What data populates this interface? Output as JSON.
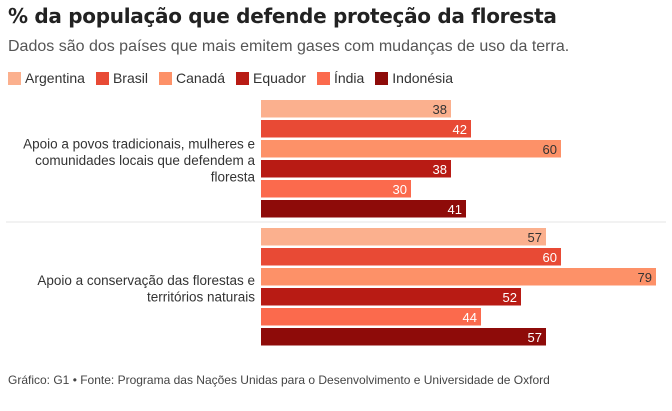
{
  "title": "% da população que defende proteção da floresta",
  "subtitle": "Dados são dos países que mais emitem gases com mudanças de uso da terra.",
  "footer": "Gráfico: G1 • Fonte: Programa das Nações Unidas para o Desenvolvimento e Universidade de Oxford",
  "colors": {
    "Argentina": "#fbb08e",
    "Brasil": "#e84a35",
    "Canadá": "#fd9168",
    "Equador": "#b81b14",
    "Índia": "#fb6a4d",
    "Indonésia": "#8e0b09"
  },
  "chart_data": {
    "type": "bar",
    "orientation": "horizontal",
    "categories": [
      "Apoio a povos tradicionais, mulheres e comunidades locais que defendem a floresta",
      "Apoio a conservação das florestas e territórios naturais"
    ],
    "category_lines": [
      [
        "Apoio a povos tradicionais, mulheres e",
        "comunidades locais que defendem a",
        "floresta"
      ],
      [
        "Apoio a conservação das florestas e",
        "territórios naturais"
      ]
    ],
    "series": [
      {
        "name": "Argentina",
        "values": [
          38,
          57
        ]
      },
      {
        "name": "Brasil",
        "values": [
          42,
          60
        ]
      },
      {
        "name": "Canadá",
        "values": [
          60,
          79
        ]
      },
      {
        "name": "Equador",
        "values": [
          38,
          52
        ]
      },
      {
        "name": "Índia",
        "values": [
          30,
          44
        ]
      },
      {
        "name": "Indonésia",
        "values": [
          41,
          57
        ]
      }
    ],
    "xlim": [
      0,
      100
    ],
    "legend": "top-left",
    "data_labels": true
  }
}
